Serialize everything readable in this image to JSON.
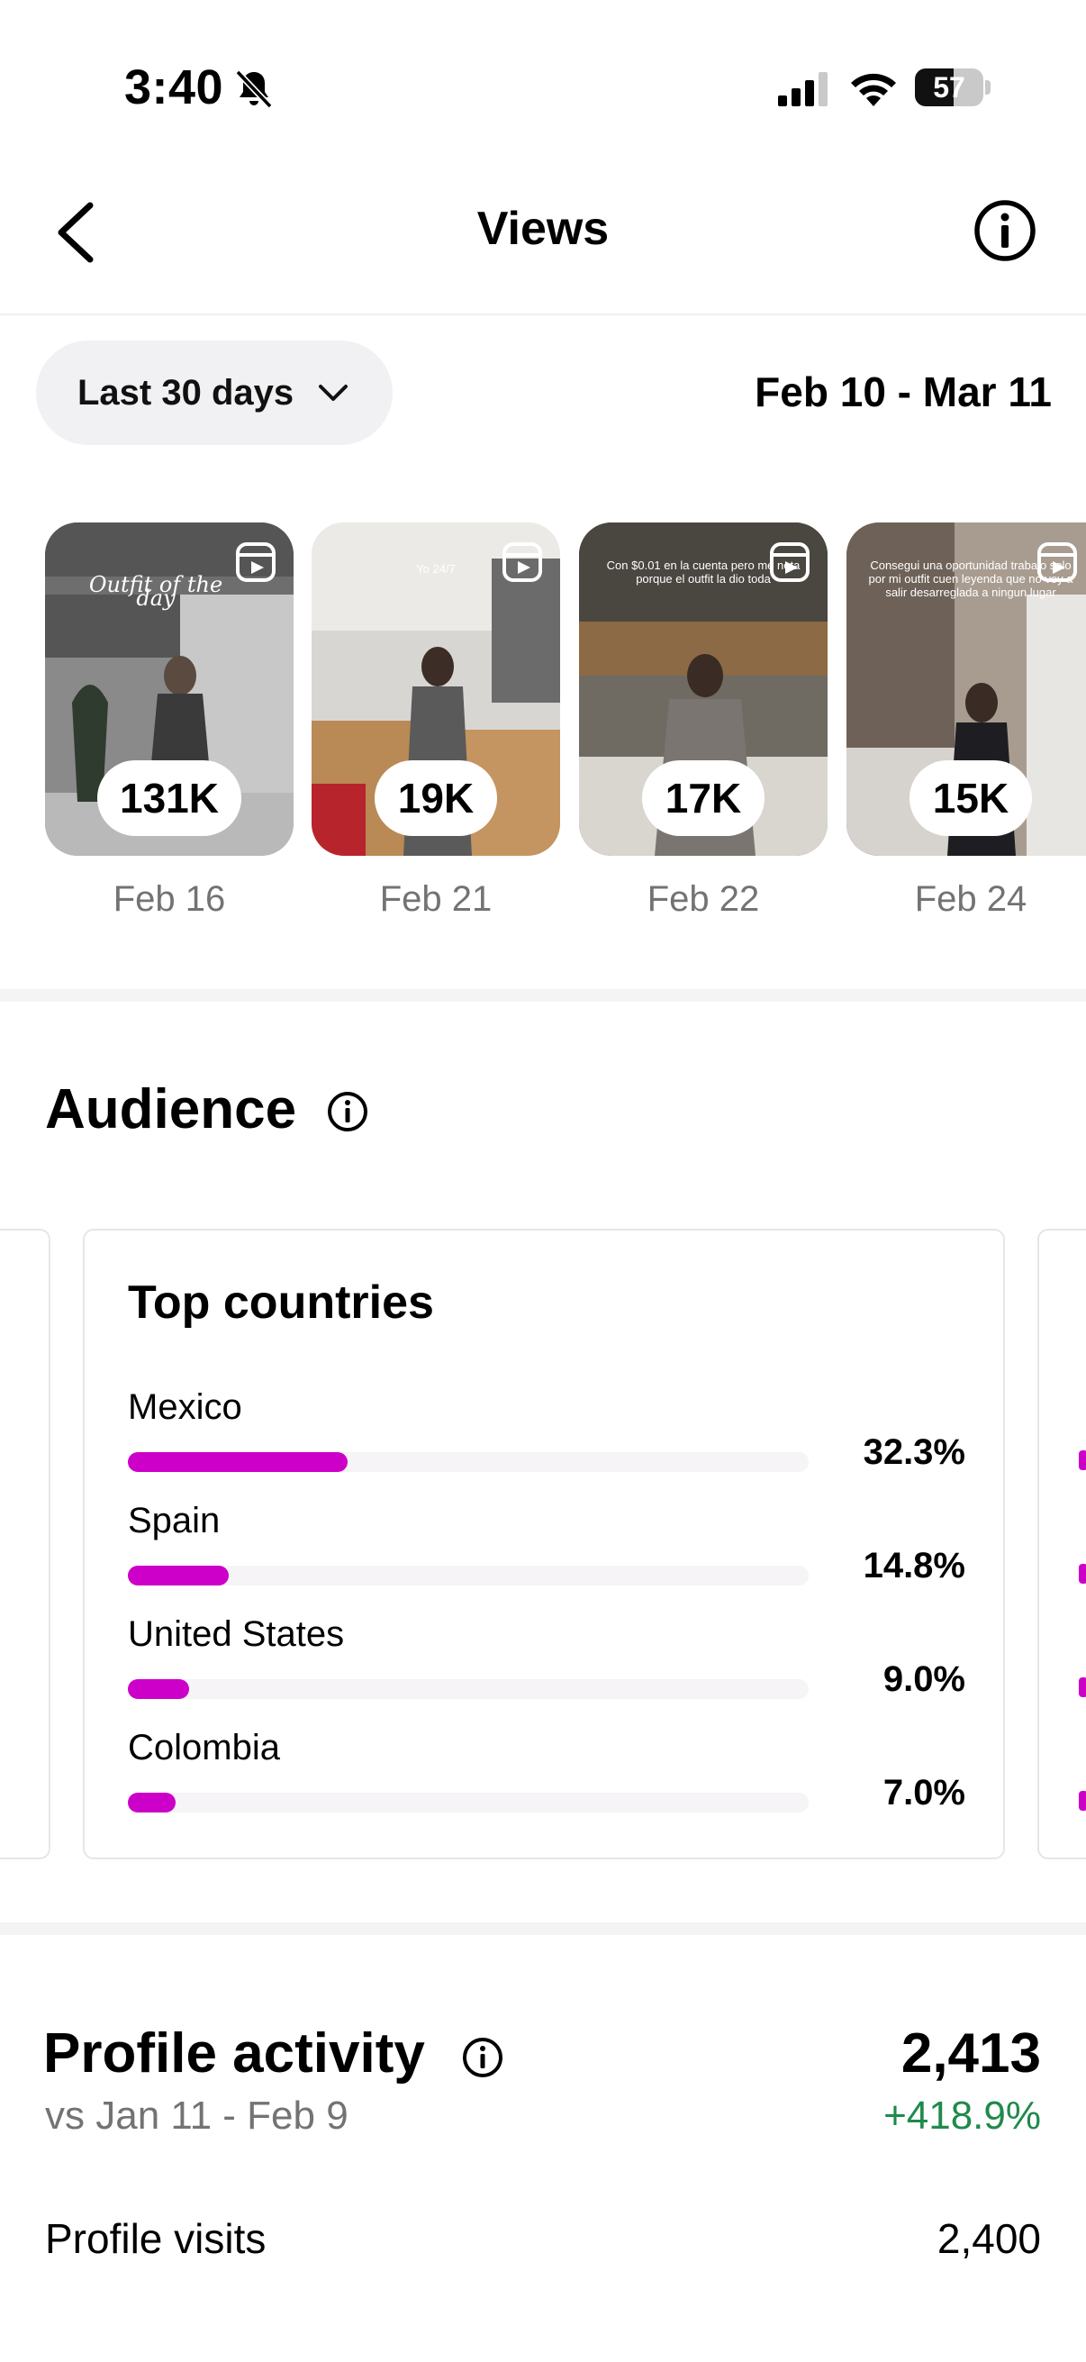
{
  "status_bar": {
    "time": "3:40",
    "battery": "57",
    "battery_level": 0.57
  },
  "header": {
    "title": "Views"
  },
  "filter": {
    "range_label": "Last 30 days",
    "date_range": "Feb 10 - Mar 11"
  },
  "thumbnails": [
    {
      "views": "131K",
      "date": "Feb 16",
      "caption": "Outfit of the day"
    },
    {
      "views": "19K",
      "date": "Feb 21",
      "caption": "Yo 24/7"
    },
    {
      "views": "17K",
      "date": "Feb 22",
      "caption": "Con $0.01 en la cuenta pero me nota porque el outfit la dio toda"
    },
    {
      "views": "15K",
      "date": "Feb 24",
      "caption": "Consegui una oportunidad trabajo solo por mi outfit cuen leyenda que no voy a salir desarreglada a ningun lugar"
    }
  ],
  "audience": {
    "title": "Audience",
    "top_countries": {
      "title": "Top countries",
      "rows": [
        {
          "country": "Mexico",
          "percent": "32.3%",
          "value": 32.3
        },
        {
          "country": "Spain",
          "percent": "14.8%",
          "value": 14.8
        },
        {
          "country": "United States",
          "percent": "9.0%",
          "value": 9.0
        },
        {
          "country": "Colombia",
          "percent": "7.0%",
          "value": 7.0
        }
      ]
    }
  },
  "profile_activity": {
    "title": "Profile activity",
    "total": "2,413",
    "comparison": "vs Jan 11 - Feb 9",
    "change": "+418.9%",
    "rows": [
      {
        "label": "Profile visits",
        "value": "2,400"
      }
    ]
  },
  "colors": {
    "accent_bar": "#cc00c8",
    "positive": "#1f8a4c",
    "muted": "#737373"
  }
}
